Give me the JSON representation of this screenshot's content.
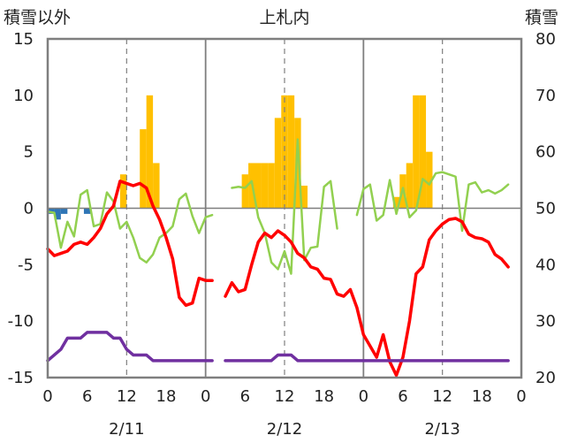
{
  "chart_data": {
    "type": "line",
    "title": "上札内",
    "y_left_label": "積雪以外",
    "y_right_label": "積雪",
    "y_left_range": [
      -15,
      15
    ],
    "y_left_ticks": [
      "15",
      "10",
      "5",
      "0",
      "-5",
      "-10",
      "-15"
    ],
    "y_right_range": [
      20,
      80
    ],
    "y_right_ticks": [
      "80",
      "70",
      "60",
      "50",
      "40",
      "30",
      "20"
    ],
    "x_range_hours": [
      0,
      72
    ],
    "x_hour_ticks": [
      "0",
      "6",
      "12",
      "18",
      "0",
      "6",
      "12",
      "18",
      "0",
      "6",
      "12",
      "18",
      "0"
    ],
    "date_labels": [
      "2/11",
      "2/12",
      "2/13"
    ],
    "colors": {
      "snowfall": "#ffc000",
      "precip": "#2e75b6",
      "wind": "#92d050",
      "temperature": "#ff0000",
      "snow_depth": "#7030a0",
      "frame": "#7f7f7f",
      "grid": "#7f7f7f"
    },
    "series": [
      {
        "key": "snowfall",
        "kind": "bar",
        "axis": "left",
        "points": [
          [
            11.5,
            3
          ],
          [
            14.5,
            7
          ],
          [
            15.5,
            10
          ],
          [
            16.5,
            4
          ],
          [
            30,
            3
          ],
          [
            31,
            4
          ],
          [
            32,
            4
          ],
          [
            33,
            4
          ],
          [
            34,
            4
          ],
          [
            35,
            8
          ],
          [
            36,
            10
          ],
          [
            37,
            10
          ],
          [
            38,
            8
          ],
          [
            39,
            2
          ],
          [
            53,
            1
          ],
          [
            54,
            3
          ],
          [
            55,
            4
          ],
          [
            56,
            10
          ],
          [
            57,
            10
          ],
          [
            58,
            5
          ]
        ]
      },
      {
        "key": "precip",
        "kind": "bar",
        "axis": "left",
        "points": [
          [
            0.5,
            -0.5
          ],
          [
            1.5,
            -1
          ],
          [
            2.5,
            -0.5
          ],
          [
            6,
            -0.5
          ]
        ]
      },
      {
        "key": "wind",
        "kind": "line",
        "axis": "left",
        "points": [
          [
            0,
            -0.3
          ],
          [
            1,
            -0.4
          ],
          [
            2,
            -3.5
          ],
          [
            3,
            -1.2
          ],
          [
            4,
            -2.5
          ],
          [
            5,
            1.2
          ],
          [
            6,
            1.6
          ],
          [
            7,
            -1.6
          ],
          [
            8,
            -1.4
          ],
          [
            9,
            1.4
          ],
          [
            10,
            0.6
          ],
          [
            11,
            -1.8
          ],
          [
            12,
            -1.2
          ],
          [
            13,
            -2.6
          ],
          [
            14,
            -4.4
          ],
          [
            15,
            -4.8
          ],
          [
            16,
            -4.1
          ],
          [
            17,
            -2.6
          ],
          [
            18,
            -2.2
          ],
          [
            19,
            -1.6
          ],
          [
            20,
            0.8
          ],
          [
            21,
            1.3
          ],
          [
            22,
            -0.7
          ],
          [
            23,
            -2.2
          ],
          [
            24,
            -0.8
          ],
          [
            25,
            -0.6
          ],
          null,
          [
            28,
            1.8
          ],
          [
            29,
            1.9
          ],
          [
            30,
            1.8
          ],
          [
            31,
            2.4
          ],
          [
            32,
            -0.8
          ],
          [
            33,
            -2.2
          ],
          [
            34,
            -4.8
          ],
          [
            35,
            -5.4
          ],
          [
            36,
            -3.8
          ],
          [
            37,
            -5.8
          ],
          [
            38,
            6.1
          ],
          [
            39,
            -4.6
          ],
          [
            40,
            -3.5
          ],
          [
            41,
            -3.4
          ],
          [
            42,
            1.9
          ],
          [
            43,
            2.4
          ],
          [
            44,
            -1.8
          ],
          null,
          [
            47,
            -0.6
          ],
          [
            48,
            1.7
          ],
          [
            49,
            2.1
          ],
          [
            50,
            -1.1
          ],
          [
            51,
            -0.6
          ],
          [
            52,
            2.5
          ],
          [
            53,
            -0.5
          ],
          [
            54,
            1.8
          ],
          [
            55,
            -0.8
          ],
          [
            56,
            -0.2
          ],
          [
            57,
            2.6
          ],
          [
            58,
            2.1
          ],
          [
            59,
            3.1
          ],
          [
            60,
            3.2
          ],
          [
            61,
            3.0
          ],
          [
            62,
            2.8
          ],
          [
            63,
            -2.0
          ],
          [
            64,
            2.1
          ],
          [
            65,
            2.3
          ],
          [
            66,
            1.4
          ],
          [
            67,
            1.6
          ],
          [
            68,
            1.3
          ],
          [
            69,
            1.6
          ],
          [
            70,
            2.1
          ]
        ]
      },
      {
        "key": "temperature",
        "kind": "line",
        "axis": "left",
        "points": [
          [
            0,
            -3.6
          ],
          [
            1,
            -4.2
          ],
          [
            2,
            -4.0
          ],
          [
            3,
            -3.8
          ],
          [
            4,
            -3.2
          ],
          [
            5,
            -3.0
          ],
          [
            6,
            -3.2
          ],
          [
            7,
            -2.6
          ],
          [
            8,
            -1.8
          ],
          [
            9,
            -0.5
          ],
          [
            10,
            0.2
          ],
          [
            11,
            2.4
          ],
          [
            12,
            2.2
          ],
          [
            13,
            2.0
          ],
          [
            14,
            2.2
          ],
          [
            15,
            1.8
          ],
          [
            16,
            0.2
          ],
          [
            17,
            -1.0
          ],
          [
            18,
            -2.6
          ],
          [
            19,
            -4.5
          ],
          [
            20,
            -7.9
          ],
          [
            21,
            -8.6
          ],
          [
            22,
            -8.4
          ],
          [
            23,
            -6.2
          ],
          [
            24,
            -6.4
          ],
          [
            25,
            -6.4
          ],
          null,
          [
            27,
            -7.8
          ],
          [
            28,
            -6.6
          ],
          [
            29,
            -7.4
          ],
          [
            30,
            -7.2
          ],
          [
            31,
            -5.0
          ],
          [
            32,
            -3.0
          ],
          [
            33,
            -2.2
          ],
          [
            34,
            -2.6
          ],
          [
            35,
            -2.0
          ],
          [
            36,
            -2.4
          ],
          [
            37,
            -3.0
          ],
          [
            38,
            -4.0
          ],
          [
            39,
            -4.4
          ],
          [
            40,
            -5.2
          ],
          [
            41,
            -5.4
          ],
          [
            42,
            -6.2
          ],
          [
            43,
            -6.3
          ],
          [
            44,
            -7.6
          ],
          [
            45,
            -7.8
          ],
          [
            46,
            -7.2
          ],
          [
            47,
            -8.8
          ],
          [
            48,
            -11.2
          ],
          [
            49,
            -12.2
          ],
          [
            50,
            -13.2
          ],
          [
            51,
            -11.2
          ],
          [
            52,
            -13.6
          ],
          [
            53,
            -14.8
          ],
          [
            54,
            -13.2
          ],
          [
            55,
            -10.0
          ],
          [
            56,
            -5.8
          ],
          [
            57,
            -5.2
          ],
          [
            58,
            -2.8
          ],
          [
            59,
            -2.0
          ],
          [
            60,
            -1.4
          ],
          [
            61,
            -1.0
          ],
          [
            62,
            -0.9
          ],
          [
            63,
            -1.2
          ],
          [
            64,
            -2.3
          ],
          [
            65,
            -2.6
          ],
          [
            66,
            -2.7
          ],
          [
            67,
            -3.0
          ],
          [
            68,
            -4.1
          ],
          [
            69,
            -4.5
          ],
          [
            70,
            -5.2
          ]
        ]
      },
      {
        "key": "snow_depth",
        "kind": "line",
        "axis": "right",
        "points": [
          [
            0,
            23
          ],
          [
            1,
            24
          ],
          [
            2,
            25
          ],
          [
            3,
            27
          ],
          [
            4,
            27
          ],
          [
            5,
            27
          ],
          [
            6,
            28
          ],
          [
            7,
            28
          ],
          [
            8,
            28
          ],
          [
            9,
            28
          ],
          [
            10,
            27
          ],
          [
            11,
            27
          ],
          [
            12,
            25
          ],
          [
            13,
            24
          ],
          [
            14,
            24
          ],
          [
            15,
            24
          ],
          [
            16,
            23
          ],
          [
            17,
            23
          ],
          [
            18,
            23
          ],
          [
            19,
            23
          ],
          [
            20,
            23
          ],
          [
            21,
            23
          ],
          [
            22,
            23
          ],
          [
            23,
            23
          ],
          [
            24,
            23
          ],
          [
            25,
            23
          ],
          null,
          [
            27,
            23
          ],
          [
            28,
            23
          ],
          [
            29,
            23
          ],
          [
            30,
            23
          ],
          [
            31,
            23
          ],
          [
            32,
            23
          ],
          [
            33,
            23
          ],
          [
            34,
            23
          ],
          [
            35,
            24
          ],
          [
            36,
            24
          ],
          [
            37,
            24
          ],
          [
            38,
            23
          ],
          [
            39,
            23
          ],
          [
            40,
            23
          ],
          [
            41,
            23
          ],
          [
            42,
            23
          ],
          [
            43,
            23
          ],
          [
            44,
            23
          ],
          [
            45,
            23
          ],
          [
            46,
            23
          ],
          [
            47,
            23
          ],
          [
            48,
            23
          ],
          [
            49,
            23
          ],
          [
            50,
            23
          ],
          [
            51,
            23
          ],
          [
            52,
            23
          ],
          [
            53,
            23
          ],
          [
            54,
            23
          ],
          [
            55,
            23
          ],
          [
            56,
            23
          ],
          [
            57,
            23
          ],
          [
            58,
            23
          ],
          [
            59,
            23
          ],
          [
            60,
            23
          ],
          [
            61,
            23
          ],
          [
            62,
            23
          ],
          [
            63,
            23
          ],
          [
            64,
            23
          ],
          [
            65,
            23
          ],
          [
            66,
            23
          ],
          [
            67,
            23
          ],
          [
            68,
            23
          ],
          [
            69,
            23
          ],
          [
            70,
            23
          ]
        ]
      }
    ]
  }
}
